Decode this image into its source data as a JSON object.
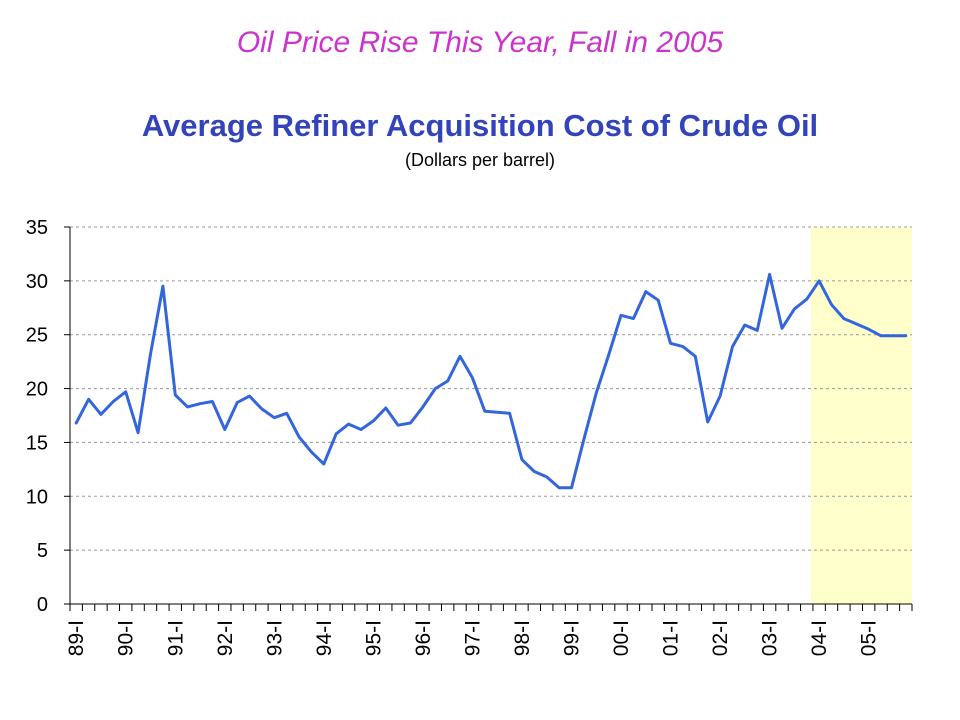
{
  "slide": {
    "headline": "Oil Price Rise This Year, Fall in 2005"
  },
  "chart_data": {
    "type": "line",
    "title": "Average Refiner Acquisition Cost of Crude Oil",
    "subtitle": "(Dollars per barrel)",
    "xlabel": "",
    "ylabel": "",
    "ylim": [
      0,
      35
    ],
    "yticks": [
      0,
      5,
      10,
      15,
      20,
      25,
      30,
      35
    ],
    "grid": "horizontal dashed",
    "forecast_start_label": "04-I",
    "forecast_shading_color": "#ffffcc",
    "line_color": "#3366dd",
    "categories": [
      "89-I",
      "89-II",
      "89-III",
      "89-IV",
      "90-I",
      "90-II",
      "90-III",
      "90-IV",
      "91-I",
      "91-II",
      "91-III",
      "91-IV",
      "92-I",
      "92-II",
      "92-III",
      "92-IV",
      "93-I",
      "93-II",
      "93-III",
      "93-IV",
      "94-I",
      "94-II",
      "94-III",
      "94-IV",
      "95-I",
      "95-II",
      "95-III",
      "95-IV",
      "96-I",
      "96-II",
      "96-III",
      "96-IV",
      "97-I",
      "97-II",
      "97-III",
      "97-IV",
      "98-I",
      "98-II",
      "98-III",
      "98-IV",
      "99-I",
      "99-II",
      "99-III",
      "99-IV",
      "00-I",
      "00-II",
      "00-III",
      "00-IV",
      "01-I",
      "01-II",
      "01-III",
      "01-IV",
      "02-I",
      "02-II",
      "02-III",
      "02-IV",
      "03-I",
      "03-II",
      "03-III",
      "03-IV",
      "04-I",
      "04-II",
      "04-III",
      "04-IV",
      "05-I",
      "05-II",
      "05-III",
      "05-IV"
    ],
    "xtick_labels": [
      "89-I",
      "90-I",
      "91-I",
      "92-I",
      "93-I",
      "94-I",
      "95-I",
      "96-I",
      "97-I",
      "98-I",
      "99-I",
      "00-I",
      "01-I",
      "02-I",
      "03-I",
      "04-I",
      "05-I"
    ],
    "series": [
      {
        "values": [
          16.8,
          19.0,
          17.6,
          18.8,
          19.7,
          15.9,
          23.2,
          29.5,
          19.4,
          18.3,
          18.6,
          18.8,
          16.2,
          18.7,
          19.3,
          18.1,
          17.3,
          17.7,
          15.5,
          14.1,
          13.0,
          15.8,
          16.7,
          16.2,
          17.0,
          18.2,
          16.6,
          16.8,
          18.3,
          20.0,
          20.7,
          23.0,
          21.0,
          17.9,
          17.8,
          17.7,
          13.4,
          12.3,
          11.8,
          10.8,
          10.8,
          15.3,
          19.6,
          23.1,
          26.8,
          26.5,
          29.0,
          28.2,
          24.2,
          23.9,
          23.0,
          16.9,
          19.3,
          23.9,
          25.9,
          25.4,
          30.6,
          25.6,
          27.4,
          28.3,
          30.0,
          27.8,
          26.5,
          26.0,
          25.5,
          24.9,
          24.9,
          24.9
        ]
      }
    ]
  }
}
